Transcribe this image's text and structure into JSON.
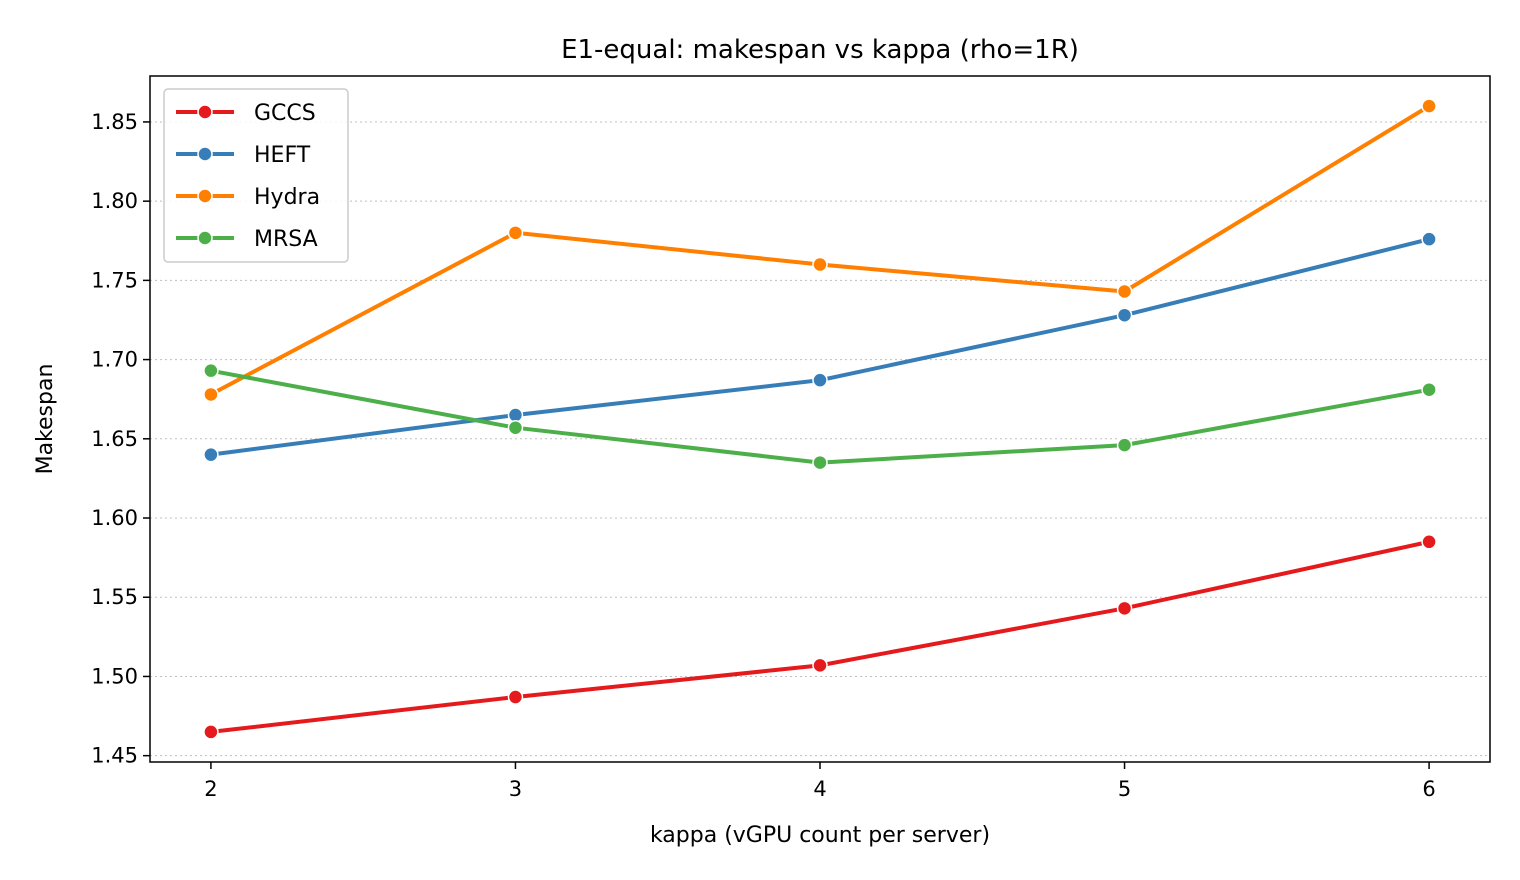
{
  "chart_data": {
    "type": "line",
    "title": "E1-equal: makespan vs kappa (rho=1R)",
    "xlabel": "kappa (vGPU count per server)",
    "ylabel": "Makespan",
    "x": [
      2,
      3,
      4,
      5,
      6
    ],
    "x_tick_labels": [
      "2",
      "3",
      "4",
      "5",
      "6"
    ],
    "y_ticks": [
      1.45,
      1.5,
      1.55,
      1.6,
      1.65,
      1.7,
      1.75,
      1.8,
      1.85
    ],
    "y_tick_labels": [
      "1.45",
      "1.50",
      "1.55",
      "1.60",
      "1.65",
      "1.70",
      "1.75",
      "1.80",
      "1.85"
    ],
    "xlim": [
      1.8,
      6.2
    ],
    "ylim": [
      1.446,
      1.879
    ],
    "grid": "y",
    "legend_position": "upper-left",
    "series": [
      {
        "name": "GCCS",
        "color": "#e41a1c",
        "values": [
          1.465,
          1.487,
          1.507,
          1.543,
          1.585
        ]
      },
      {
        "name": "HEFT",
        "color": "#377eb8",
        "values": [
          1.64,
          1.665,
          1.687,
          1.728,
          1.776
        ]
      },
      {
        "name": "Hydra",
        "color": "#ff7f00",
        "values": [
          1.678,
          1.78,
          1.76,
          1.743,
          1.86
        ]
      },
      {
        "name": "MRSA",
        "color": "#4daf4a",
        "values": [
          1.693,
          1.657,
          1.635,
          1.646,
          1.681
        ]
      }
    ]
  }
}
